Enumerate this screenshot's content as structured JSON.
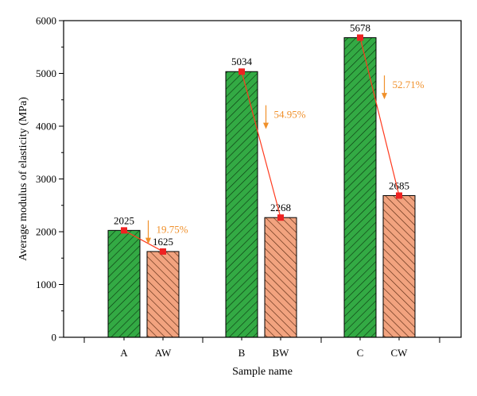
{
  "chart_data": {
    "type": "bar",
    "xlabel": "Sample name",
    "ylabel": "Average modulus of elasticity (MPa)",
    "ylim": [
      0,
      6000
    ],
    "yticks": [
      0,
      1000,
      2000,
      3000,
      4000,
      5000,
      6000
    ],
    "grid": false,
    "categories": [
      "A",
      "AW",
      "B",
      "BW",
      "C",
      "CW"
    ],
    "values": [
      2025,
      1625,
      5034,
      2268,
      5678,
      2685
    ],
    "value_labels": [
      "2025",
      "1625",
      "5034",
      "2268",
      "5678",
      "2685"
    ],
    "bar_colors": [
      "#33aa44",
      "#f2a37f",
      "#33aa44",
      "#f2a37f",
      "#33aa44",
      "#f2a37f"
    ],
    "pattern": "diagonal-hatch",
    "reductions": [
      {
        "from": "A",
        "to": "AW",
        "label": "19.75%"
      },
      {
        "from": "B",
        "to": "BW",
        "label": "54.95%"
      },
      {
        "from": "C",
        "to": "CW",
        "label": "52.71%"
      }
    ],
    "colors": {
      "untreated": "#33aa44",
      "treated": "#f2a37f",
      "connector": "#ff3b1f",
      "marker": "#ee2222",
      "arrow": "#f0902a"
    }
  }
}
